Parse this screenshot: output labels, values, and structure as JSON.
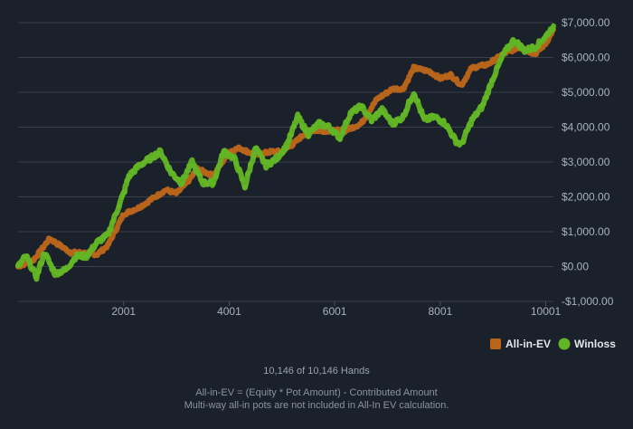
{
  "footer": {
    "hands_count": "10,146 of 10,146 Hands",
    "note_line1": "All-in-EV = (Equity * Pot Amount) - Contributed Amount",
    "note_line2": "Multi-way all-in pots are not included in All-In EV calculation."
  },
  "chart_data": {
    "type": "line",
    "title": "",
    "xlabel": "",
    "ylabel": "",
    "xlim": [
      1,
      10146
    ],
    "ylim": [
      -1000,
      7000
    ],
    "x_ticks": [
      2001,
      4001,
      6001,
      8001,
      10001
    ],
    "x_tick_labels": [
      "2001",
      "4001",
      "6001",
      "8001",
      "10001"
    ],
    "y_ticks": [
      -1000,
      0,
      1000,
      2000,
      3000,
      4000,
      5000,
      6000,
      7000
    ],
    "y_tick_labels": [
      "-$1,000.00",
      "$0.00",
      "$1,000.00",
      "$2,000.00",
      "$3,000.00",
      "$4,000.00",
      "$5,000.00",
      "$6,000.00",
      "$7,000.00"
    ],
    "grid": true,
    "legend_position": "bottom-right",
    "series": [
      {
        "name": "All-in-EV",
        "color": "#b8651b",
        "x": [
          1,
          300,
          600,
          800,
          1000,
          1200,
          1500,
          1700,
          2001,
          2300,
          2600,
          2800,
          3000,
          3200,
          3400,
          3700,
          4001,
          4200,
          4500,
          4800,
          5000,
          5200,
          5500,
          5800,
          6001,
          6200,
          6500,
          6800,
          7100,
          7300,
          7500,
          7800,
          8001,
          8200,
          8400,
          8600,
          8900,
          9200,
          9500,
          9800,
          10001,
          10146
        ],
        "values": [
          0,
          200,
          800,
          600,
          400,
          400,
          350,
          600,
          1500,
          1700,
          2000,
          2200,
          2100,
          2400,
          2800,
          2600,
          3300,
          3400,
          3200,
          3300,
          3300,
          3500,
          3900,
          3900,
          3900,
          3900,
          4100,
          4800,
          5100,
          5100,
          5700,
          5600,
          5400,
          5500,
          5200,
          5700,
          5800,
          6100,
          6300,
          6100,
          6400,
          6800
        ]
      },
      {
        "name": "Winloss",
        "color": "#62b524",
        "x": [
          1,
          150,
          350,
          500,
          700,
          900,
          1100,
          1300,
          1500,
          1700,
          1900,
          2001,
          2100,
          2300,
          2500,
          2700,
          2900,
          3100,
          3300,
          3500,
          3700,
          3900,
          4100,
          4300,
          4500,
          4700,
          4900,
          5100,
          5300,
          5500,
          5700,
          5900,
          6100,
          6300,
          6500,
          6700,
          6900,
          7100,
          7300,
          7500,
          7700,
          7900,
          8100,
          8300,
          8400,
          8600,
          8800,
          9000,
          9200,
          9400,
          9600,
          9800,
          10001,
          10146
        ],
        "values": [
          0,
          300,
          -300,
          400,
          -200,
          -100,
          300,
          300,
          700,
          900,
          1700,
          2100,
          2600,
          2900,
          3100,
          3300,
          2700,
          2400,
          3000,
          2400,
          2400,
          3300,
          3100,
          2300,
          3400,
          2900,
          3100,
          3500,
          4300,
          3800,
          4100,
          4000,
          3700,
          4400,
          4600,
          4200,
          4500,
          4100,
          4300,
          5000,
          4200,
          4300,
          4100,
          3600,
          3500,
          4200,
          4600,
          5400,
          6100,
          6500,
          6200,
          6300,
          6600,
          6900
        ]
      }
    ]
  }
}
